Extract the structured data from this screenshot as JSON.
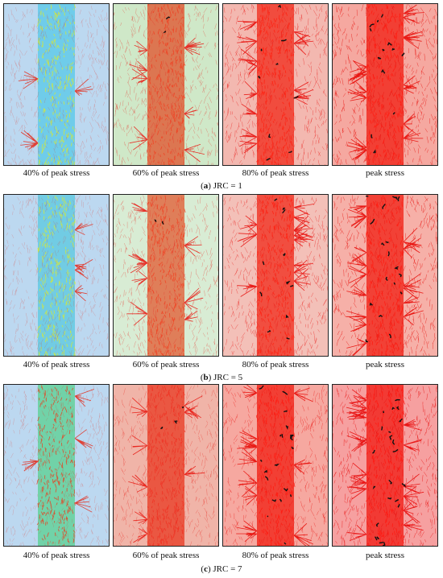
{
  "groups": [
    {
      "letter": "a",
      "label_text": ") JRC = 1",
      "captions": [
        "40% of peak stress",
        "60% of peak stress",
        "80% of peak stress",
        "peak stress"
      ],
      "stages": [
        {
          "bg": "#bcd8f0",
          "band": "#55c8e8",
          "hot": "#d8e830",
          "crack": "#e23020",
          "black": 0.0
        },
        {
          "bg": "#cfe8c8",
          "band": "#e0502a",
          "hot": "#f04020",
          "crack": "#e8201a",
          "black": 0.1
        },
        {
          "bg": "#f3b8b0",
          "band": "#f02818",
          "hot": "#ff2010",
          "crack": "#e8100c",
          "black": 0.4
        },
        {
          "bg": "#f5a8a0",
          "band": "#f01c10",
          "hot": "#ff1a10",
          "crack": "#e80c08",
          "black": 0.6
        }
      ]
    },
    {
      "letter": "b",
      "label_text": ") JRC = 5",
      "captions": [
        "40% of peak stress",
        "60% of peak stress",
        "80% of peak stress",
        "peak stress"
      ],
      "stages": [
        {
          "bg": "#bcd8f0",
          "band": "#58c8e0",
          "hot": "#d8e830",
          "crack": "#e23020",
          "black": 0.0
        },
        {
          "bg": "#d8ecd4",
          "band": "#e25a30",
          "hot": "#f04020",
          "crack": "#e8201a",
          "black": 0.1
        },
        {
          "bg": "#f3c0b8",
          "band": "#f02818",
          "hot": "#ff2010",
          "crack": "#e8100c",
          "black": 0.5
        },
        {
          "bg": "#f6b0a8",
          "band": "#f01c10",
          "hot": "#ff1a10",
          "crack": "#e80c08",
          "black": 0.8
        }
      ]
    },
    {
      "letter": "c",
      "label_text": ") JRC = 7",
      "captions": [
        "40% of peak stress",
        "60% of peak stress",
        "80% of peak stress",
        "peak stress"
      ],
      "stages": [
        {
          "bg": "#bcd8f0",
          "band": "#58d090",
          "hot": "#e84020",
          "crack": "#e23020",
          "black": 0.0
        },
        {
          "bg": "#f0b4a8",
          "band": "#e83820",
          "hot": "#f03020",
          "crack": "#e81a12",
          "black": 0.15
        },
        {
          "bg": "#f6a8a0",
          "band": "#f01c10",
          "hot": "#ff1a10",
          "crack": "#e80c08",
          "black": 0.9
        },
        {
          "bg": "#f6a0a0",
          "band": "#f01810",
          "hot": "#ff1810",
          "crack": "#e80808",
          "black": 1.0
        }
      ]
    }
  ]
}
